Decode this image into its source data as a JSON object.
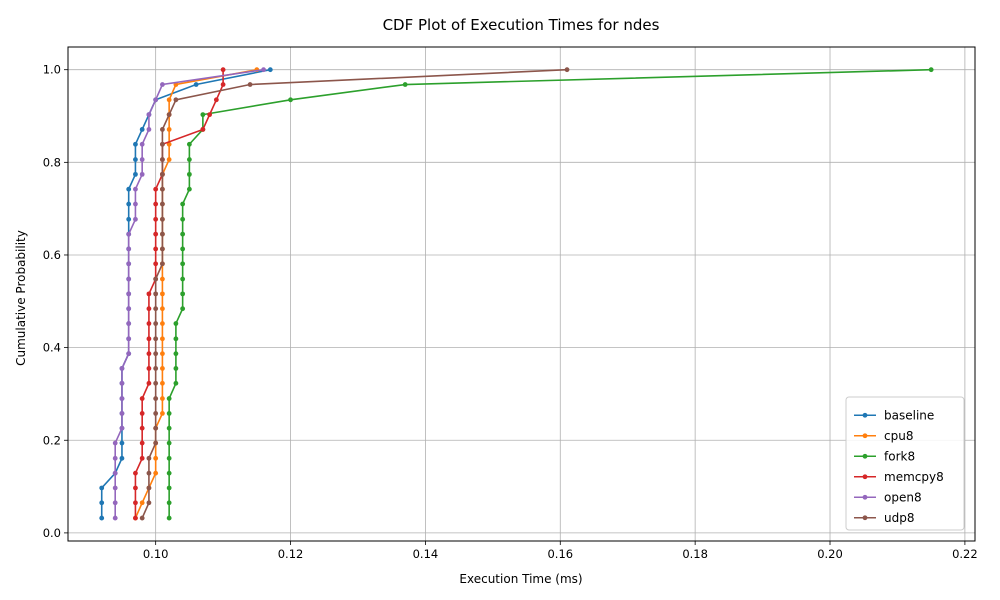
{
  "chart_data": {
    "type": "line",
    "title": "CDF Plot of Execution Times for ndes",
    "xlabel": "Execution Time (ms)",
    "ylabel": "Cumulative Probability",
    "xlim": [
      0.087,
      0.2215
    ],
    "ylim": [
      -0.0175,
      1.049
    ],
    "xticks": [
      "0.10",
      "0.12",
      "0.14",
      "0.16",
      "0.18",
      "0.20",
      "0.22"
    ],
    "xtick_values": [
      0.1,
      0.12,
      0.14,
      0.16,
      0.18,
      0.2,
      0.22
    ],
    "yticks": [
      "0.0",
      "0.2",
      "0.4",
      "0.6",
      "0.8",
      "1.0"
    ],
    "ytick_values": [
      0.0,
      0.2,
      0.4,
      0.6,
      0.8,
      1.0
    ],
    "grid": true,
    "legend_position": "lower-right",
    "y": [
      0.032,
      0.065,
      0.097,
      0.129,
      0.161,
      0.194,
      0.226,
      0.258,
      0.29,
      0.323,
      0.355,
      0.387,
      0.419,
      0.452,
      0.484,
      0.516,
      0.548,
      0.581,
      0.613,
      0.645,
      0.677,
      0.71,
      0.742,
      0.774,
      0.806,
      0.839,
      0.871,
      0.903,
      0.935,
      0.968,
      1.0
    ],
    "series": [
      {
        "name": "baseline",
        "color": "#1f77b4",
        "x": [
          0.092,
          0.092,
          0.092,
          0.094,
          0.095,
          0.095,
          0.095,
          0.095,
          0.095,
          0.095,
          0.095,
          0.096,
          0.096,
          0.096,
          0.096,
          0.096,
          0.096,
          0.096,
          0.096,
          0.096,
          0.096,
          0.096,
          0.096,
          0.097,
          0.097,
          0.097,
          0.098,
          0.099,
          0.1,
          0.106,
          0.117
        ]
      },
      {
        "name": "cpu8",
        "color": "#ff7f0e",
        "x": [
          0.097,
          0.098,
          0.099,
          0.1,
          0.1,
          0.1,
          0.1,
          0.101,
          0.101,
          0.101,
          0.101,
          0.101,
          0.101,
          0.101,
          0.101,
          0.101,
          0.101,
          0.101,
          0.101,
          0.101,
          0.101,
          0.101,
          0.101,
          0.101,
          0.102,
          0.102,
          0.102,
          0.102,
          0.102,
          0.103,
          0.115
        ]
      },
      {
        "name": "fork8",
        "color": "#2ca02c",
        "x": [
          0.102,
          0.102,
          0.102,
          0.102,
          0.102,
          0.102,
          0.102,
          0.102,
          0.102,
          0.103,
          0.103,
          0.103,
          0.103,
          0.103,
          0.104,
          0.104,
          0.104,
          0.104,
          0.104,
          0.104,
          0.104,
          0.104,
          0.105,
          0.105,
          0.105,
          0.105,
          0.107,
          0.107,
          0.12,
          0.137,
          0.215
        ]
      },
      {
        "name": "memcpy8",
        "color": "#d62728",
        "x": [
          0.097,
          0.097,
          0.097,
          0.097,
          0.098,
          0.098,
          0.098,
          0.098,
          0.098,
          0.099,
          0.099,
          0.099,
          0.099,
          0.099,
          0.099,
          0.099,
          0.1,
          0.1,
          0.1,
          0.1,
          0.1,
          0.1,
          0.1,
          0.101,
          0.101,
          0.101,
          0.107,
          0.108,
          0.109,
          0.11,
          0.11
        ]
      },
      {
        "name": "open8",
        "color": "#9467bd",
        "x": [
          0.094,
          0.094,
          0.094,
          0.094,
          0.094,
          0.094,
          0.095,
          0.095,
          0.095,
          0.095,
          0.095,
          0.096,
          0.096,
          0.096,
          0.096,
          0.096,
          0.096,
          0.096,
          0.096,
          0.096,
          0.097,
          0.097,
          0.097,
          0.098,
          0.098,
          0.098,
          0.099,
          0.099,
          0.1,
          0.101,
          0.116
        ]
      },
      {
        "name": "udp8",
        "color": "#8c564b",
        "x": [
          0.098,
          0.099,
          0.099,
          0.099,
          0.099,
          0.1,
          0.1,
          0.1,
          0.1,
          0.1,
          0.1,
          0.1,
          0.1,
          0.1,
          0.1,
          0.1,
          0.1,
          0.101,
          0.101,
          0.101,
          0.101,
          0.101,
          0.101,
          0.101,
          0.101,
          0.101,
          0.101,
          0.102,
          0.103,
          0.114,
          0.161
        ]
      }
    ]
  }
}
